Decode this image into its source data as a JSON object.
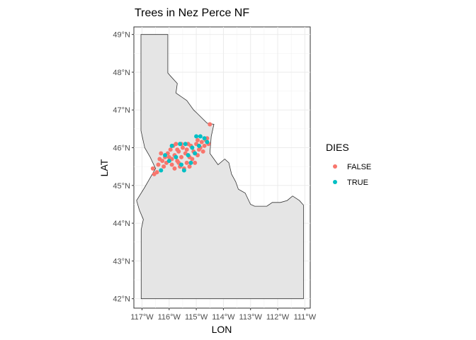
{
  "chart_data": {
    "type": "map",
    "title": "Trees in Nez Perce NF",
    "xlabel": "LON",
    "ylabel": "LAT",
    "xlim": [
      -117.3,
      -110.8
    ],
    "ylim": [
      41.75,
      49.2
    ],
    "x_ticks": [
      -117,
      -116,
      -115,
      -114,
      -113,
      -112,
      -111
    ],
    "x_tick_labels": [
      "117°W",
      "116°W",
      "115°W",
      "114°W",
      "113°W",
      "112°W",
      "111°W"
    ],
    "y_ticks": [
      42,
      43,
      44,
      45,
      46,
      47,
      48,
      49
    ],
    "y_tick_labels": [
      "42°N",
      "43°N",
      "44°N",
      "45°N",
      "46°N",
      "47°N",
      "48°N",
      "49°N"
    ],
    "grid": true,
    "map_fill": "#e5e5e5",
    "map_stroke": "#333333",
    "legend": {
      "title": "DIES",
      "position": "right",
      "entries": [
        {
          "label": "FALSE",
          "color": "#f8766d"
        },
        {
          "label": "TRUE",
          "color": "#00bfc4"
        }
      ]
    },
    "boundary": [
      [
        -117.03,
        49.0
      ],
      [
        -116.05,
        49.0
      ],
      [
        -116.05,
        47.98
      ],
      [
        -115.95,
        47.9
      ],
      [
        -115.7,
        47.7
      ],
      [
        -115.75,
        47.45
      ],
      [
        -115.35,
        47.25
      ],
      [
        -115.1,
        47.0
      ],
      [
        -114.95,
        46.9
      ],
      [
        -114.6,
        46.65
      ],
      [
        -114.35,
        46.62
      ],
      [
        -114.45,
        46.3
      ],
      [
        -114.5,
        45.85
      ],
      [
        -114.2,
        45.55
      ],
      [
        -113.95,
        45.7
      ],
      [
        -113.8,
        45.6
      ],
      [
        -113.7,
        45.3
      ],
      [
        -113.55,
        45.1
      ],
      [
        -113.45,
        44.9
      ],
      [
        -113.2,
        44.8
      ],
      [
        -113.0,
        44.5
      ],
      [
        -112.85,
        44.45
      ],
      [
        -112.4,
        44.45
      ],
      [
        -112.2,
        44.55
      ],
      [
        -111.9,
        44.55
      ],
      [
        -111.65,
        44.6
      ],
      [
        -111.45,
        44.72
      ],
      [
        -111.2,
        44.6
      ],
      [
        -111.05,
        44.48
      ],
      [
        -111.05,
        42.0
      ],
      [
        -114.0,
        42.0
      ],
      [
        -117.03,
        42.0
      ],
      [
        -117.03,
        43.83
      ],
      [
        -116.95,
        44.1
      ],
      [
        -117.1,
        44.35
      ],
      [
        -117.2,
        44.6
      ],
      [
        -116.9,
        44.95
      ],
      [
        -116.5,
        45.45
      ],
      [
        -116.7,
        45.75
      ],
      [
        -116.9,
        46.0
      ],
      [
        -117.04,
        46.45
      ],
      [
        -117.04,
        49.0
      ]
    ],
    "series": [
      {
        "name": "FALSE",
        "color": "#f8766d",
        "points": [
          [
            -116.55,
            45.3
          ],
          [
            -116.6,
            45.45
          ],
          [
            -116.4,
            45.55
          ],
          [
            -116.35,
            45.7
          ],
          [
            -116.2,
            45.5
          ],
          [
            -116.1,
            45.6
          ],
          [
            -116.0,
            45.75
          ],
          [
            -115.9,
            45.55
          ],
          [
            -115.8,
            45.8
          ],
          [
            -115.7,
            45.65
          ],
          [
            -115.65,
            45.9
          ],
          [
            -115.55,
            45.75
          ],
          [
            -115.5,
            46.0
          ],
          [
            -115.4,
            45.85
          ],
          [
            -115.35,
            45.6
          ],
          [
            -115.25,
            45.75
          ],
          [
            -115.2,
            46.05
          ],
          [
            -115.1,
            45.9
          ],
          [
            -115.0,
            46.1
          ],
          [
            -114.9,
            45.95
          ],
          [
            -114.8,
            46.15
          ],
          [
            -114.7,
            46.05
          ],
          [
            -114.65,
            46.2
          ],
          [
            -114.55,
            46.1
          ],
          [
            -114.5,
            46.62
          ],
          [
            -115.95,
            45.95
          ],
          [
            -115.85,
            46.05
          ],
          [
            -115.75,
            46.1
          ],
          [
            -115.6,
            45.5
          ],
          [
            -115.45,
            45.45
          ],
          [
            -116.05,
            45.85
          ],
          [
            -116.25,
            45.65
          ],
          [
            -115.3,
            46.1
          ],
          [
            -115.15,
            45.7
          ],
          [
            -114.95,
            45.8
          ],
          [
            -114.85,
            46.0
          ],
          [
            -115.05,
            45.6
          ],
          [
            -115.55,
            46.1
          ],
          [
            -115.7,
            45.95
          ],
          [
            -116.15,
            45.75
          ],
          [
            -115.9,
            45.7
          ],
          [
            -115.35,
            45.95
          ],
          [
            -114.75,
            45.9
          ],
          [
            -114.6,
            46.25
          ],
          [
            -116.45,
            45.35
          ],
          [
            -115.8,
            45.45
          ],
          [
            -115.25,
            45.5
          ],
          [
            -114.95,
            46.2
          ],
          [
            -115.65,
            45.6
          ],
          [
            -116.3,
            45.85
          ]
        ]
      },
      {
        "name": "TRUE",
        "color": "#00bfc4",
        "points": [
          [
            -116.3,
            45.4
          ],
          [
            -115.45,
            45.4
          ],
          [
            -115.9,
            46.05
          ],
          [
            -115.6,
            46.1
          ],
          [
            -115.3,
            45.8
          ],
          [
            -115.0,
            46.3
          ],
          [
            -114.85,
            46.3
          ],
          [
            -114.6,
            46.15
          ],
          [
            -115.15,
            46.0
          ],
          [
            -115.55,
            45.55
          ],
          [
            -115.75,
            45.75
          ],
          [
            -116.0,
            45.65
          ],
          [
            -115.2,
            45.6
          ],
          [
            -114.9,
            46.05
          ],
          [
            -115.4,
            46.1
          ],
          [
            -116.15,
            45.8
          ],
          [
            -115.05,
            45.85
          ],
          [
            -114.7,
            46.25
          ]
        ]
      }
    ]
  }
}
